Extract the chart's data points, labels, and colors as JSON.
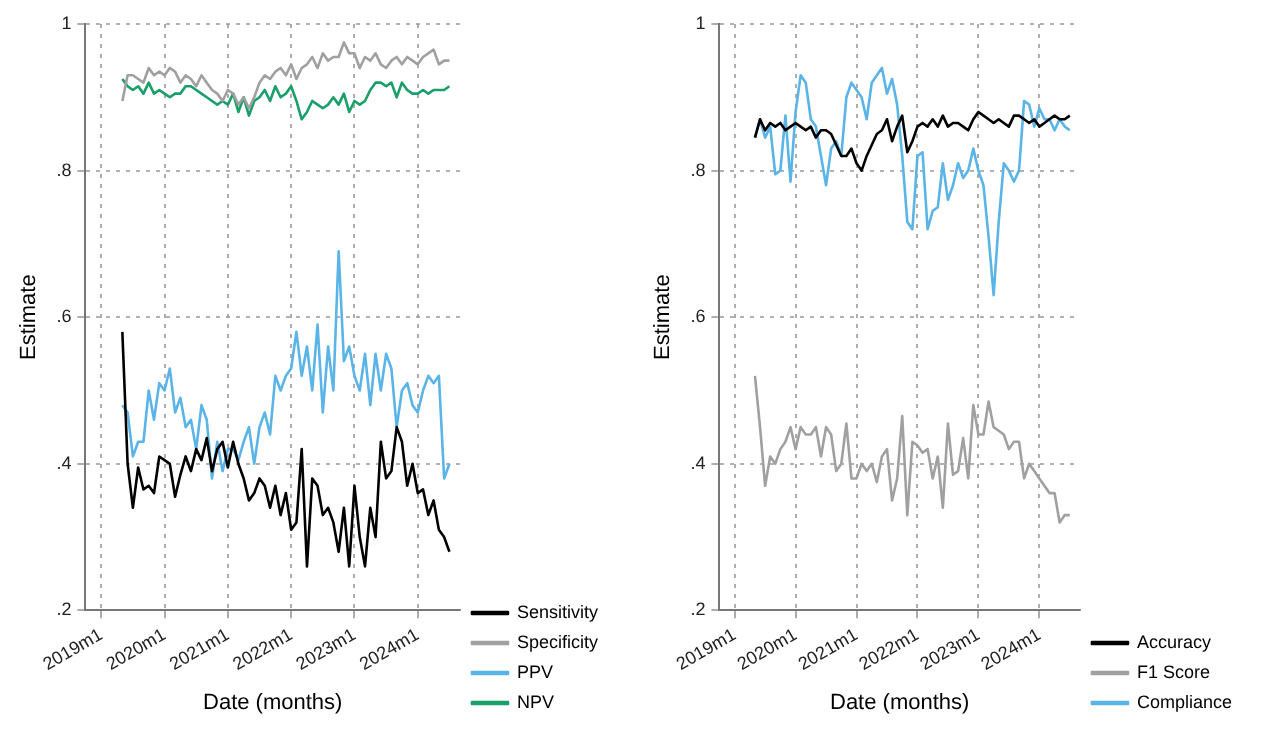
{
  "chart_data": [
    {
      "type": "line",
      "xlabel": "Date (months)",
      "ylabel": "Estimate",
      "grid": true,
      "legend": "right",
      "marker": "none",
      "x": [
        "2019-05",
        "2019-06",
        "2019-07",
        "2019-08",
        "2019-09",
        "2019-10",
        "2019-11",
        "2019-12",
        "2020-01",
        "2020-02",
        "2020-03",
        "2020-04",
        "2020-05",
        "2020-06",
        "2020-07",
        "2020-08",
        "2020-09",
        "2020-10",
        "2020-11",
        "2020-12",
        "2021-01",
        "2021-02",
        "2021-03",
        "2021-04",
        "2021-05",
        "2021-06",
        "2021-07",
        "2021-08",
        "2021-09",
        "2021-10",
        "2021-11",
        "2021-12",
        "2022-01",
        "2022-02",
        "2022-03",
        "2022-04",
        "2022-05",
        "2022-06",
        "2022-07",
        "2022-08",
        "2022-09",
        "2022-10",
        "2022-11",
        "2022-12",
        "2023-01",
        "2023-02",
        "2023-03",
        "2023-04",
        "2023-05",
        "2023-06",
        "2023-07",
        "2023-08",
        "2023-09",
        "2023-10",
        "2023-11",
        "2023-12",
        "2024-01",
        "2024-02",
        "2024-03",
        "2024-04",
        "2024-05",
        "2024-06",
        "2024-07"
      ],
      "xlim": [
        "2018-10",
        "2024-09"
      ],
      "xticks": [
        {
          "value": "2019-01",
          "label": "2019m1"
        },
        {
          "value": "2020-01",
          "label": "2020m1"
        },
        {
          "value": "2021-01",
          "label": "2021m1"
        },
        {
          "value": "2022-01",
          "label": "2022m1"
        },
        {
          "value": "2023-01",
          "label": "2023m1"
        },
        {
          "value": "2024-01",
          "label": "2024m1"
        }
      ],
      "ylim": [
        0.2,
        1
      ],
      "yticks": [
        {
          "value": 0.2,
          "label": ".2"
        },
        {
          "value": 0.4,
          "label": ".4"
        },
        {
          "value": 0.6,
          "label": ".6"
        },
        {
          "value": 0.8,
          "label": ".8"
        },
        1
      ],
      "series": [
        {
          "name": "Sensitivity",
          "color": "#000000",
          "values": [
            0.58,
            0.4,
            0.34,
            0.395,
            0.365,
            0.37,
            0.36,
            0.41,
            0.405,
            0.4,
            0.355,
            0.385,
            0.41,
            0.39,
            0.42,
            0.405,
            0.435,
            0.39,
            0.42,
            0.43,
            0.395,
            0.43,
            0.4,
            0.38,
            0.35,
            0.36,
            0.38,
            0.37,
            0.34,
            0.37,
            0.33,
            0.36,
            0.31,
            0.32,
            0.42,
            0.26,
            0.38,
            0.37,
            0.33,
            0.34,
            0.32,
            0.28,
            0.34,
            0.26,
            0.37,
            0.3,
            0.26,
            0.34,
            0.3,
            0.43,
            0.38,
            0.39,
            0.45,
            0.43,
            0.37,
            0.4,
            0.36,
            0.365,
            0.33,
            0.35,
            0.31,
            0.3,
            0.28
          ]
        },
        {
          "name": "Specificity",
          "color": "#a0a0a0",
          "values": [
            0.895,
            0.93,
            0.93,
            0.925,
            0.92,
            0.94,
            0.93,
            0.935,
            0.93,
            0.94,
            0.935,
            0.92,
            0.93,
            0.925,
            0.915,
            0.93,
            0.92,
            0.91,
            0.905,
            0.895,
            0.91,
            0.905,
            0.89,
            0.9,
            0.885,
            0.9,
            0.92,
            0.93,
            0.925,
            0.935,
            0.94,
            0.93,
            0.945,
            0.925,
            0.94,
            0.945,
            0.955,
            0.94,
            0.96,
            0.95,
            0.955,
            0.955,
            0.975,
            0.96,
            0.96,
            0.94,
            0.955,
            0.95,
            0.96,
            0.945,
            0.94,
            0.95,
            0.955,
            0.945,
            0.955,
            0.95,
            0.945,
            0.955,
            0.96,
            0.965,
            0.945,
            0.95,
            0.95
          ]
        },
        {
          "name": "PPV",
          "color": "#5ab4e8",
          "values": [
            0.48,
            0.47,
            0.41,
            0.43,
            0.43,
            0.5,
            0.46,
            0.51,
            0.5,
            0.53,
            0.47,
            0.49,
            0.45,
            0.46,
            0.42,
            0.48,
            0.46,
            0.38,
            0.43,
            0.39,
            0.42,
            0.42,
            0.405,
            0.43,
            0.45,
            0.4,
            0.45,
            0.47,
            0.44,
            0.52,
            0.5,
            0.52,
            0.53,
            0.58,
            0.52,
            0.56,
            0.5,
            0.59,
            0.47,
            0.56,
            0.5,
            0.69,
            0.54,
            0.56,
            0.52,
            0.5,
            0.55,
            0.48,
            0.55,
            0.5,
            0.55,
            0.53,
            0.45,
            0.5,
            0.51,
            0.48,
            0.47,
            0.5,
            0.52,
            0.51,
            0.52,
            0.38,
            0.4
          ]
        },
        {
          "name": "NPV",
          "color": "#1a9e6a",
          "values": [
            0.925,
            0.915,
            0.91,
            0.915,
            0.905,
            0.92,
            0.905,
            0.91,
            0.905,
            0.9,
            0.905,
            0.905,
            0.915,
            0.915,
            0.91,
            0.905,
            0.9,
            0.895,
            0.89,
            0.895,
            0.89,
            0.905,
            0.88,
            0.9,
            0.875,
            0.895,
            0.9,
            0.91,
            0.895,
            0.915,
            0.9,
            0.905,
            0.915,
            0.895,
            0.87,
            0.88,
            0.895,
            0.89,
            0.885,
            0.89,
            0.9,
            0.89,
            0.905,
            0.88,
            0.895,
            0.89,
            0.895,
            0.91,
            0.92,
            0.92,
            0.915,
            0.92,
            0.9,
            0.92,
            0.91,
            0.905,
            0.905,
            0.91,
            0.905,
            0.91,
            0.91,
            0.91,
            0.915
          ]
        }
      ]
    },
    {
      "type": "line",
      "xlabel": "Date (months)",
      "ylabel": "Estimate",
      "grid": true,
      "legend": "right",
      "marker": "none",
      "x": [
        "2019-05",
        "2019-06",
        "2019-07",
        "2019-08",
        "2019-09",
        "2019-10",
        "2019-11",
        "2019-12",
        "2020-01",
        "2020-02",
        "2020-03",
        "2020-04",
        "2020-05",
        "2020-06",
        "2020-07",
        "2020-08",
        "2020-09",
        "2020-10",
        "2020-11",
        "2020-12",
        "2021-01",
        "2021-02",
        "2021-03",
        "2021-04",
        "2021-05",
        "2021-06",
        "2021-07",
        "2021-08",
        "2021-09",
        "2021-10",
        "2021-11",
        "2021-12",
        "2022-01",
        "2022-02",
        "2022-03",
        "2022-04",
        "2022-05",
        "2022-06",
        "2022-07",
        "2022-08",
        "2022-09",
        "2022-10",
        "2022-11",
        "2022-12",
        "2023-01",
        "2023-02",
        "2023-03",
        "2023-04",
        "2023-05",
        "2023-06",
        "2023-07",
        "2023-08",
        "2023-09",
        "2023-10",
        "2023-11",
        "2023-12",
        "2024-01",
        "2024-02",
        "2024-03",
        "2024-04",
        "2024-05",
        "2024-06",
        "2024-07"
      ],
      "xlim": [
        "2018-10",
        "2024-09"
      ],
      "xticks": [
        {
          "value": "2019-01",
          "label": "2019m1"
        },
        {
          "value": "2020-01",
          "label": "2020m1"
        },
        {
          "value": "2021-01",
          "label": "2021m1"
        },
        {
          "value": "2022-01",
          "label": "2022m1"
        },
        {
          "value": "2023-01",
          "label": "2023m1"
        },
        {
          "value": "2024-01",
          "label": "2024m1"
        }
      ],
      "ylim": [
        0.2,
        1
      ],
      "yticks": [
        {
          "value": 0.2,
          "label": ".2"
        },
        {
          "value": 0.4,
          "label": ".4"
        },
        {
          "value": 0.6,
          "label": ".6"
        },
        {
          "value": 0.8,
          "label": ".8"
        },
        1
      ],
      "series": [
        {
          "name": "Accuracy",
          "color": "#000000",
          "values": [
            0.845,
            0.87,
            0.855,
            0.865,
            0.86,
            0.865,
            0.855,
            0.86,
            0.865,
            0.86,
            0.855,
            0.86,
            0.845,
            0.855,
            0.855,
            0.85,
            0.835,
            0.82,
            0.82,
            0.83,
            0.81,
            0.8,
            0.82,
            0.835,
            0.85,
            0.855,
            0.87,
            0.84,
            0.86,
            0.875,
            0.825,
            0.84,
            0.86,
            0.865,
            0.86,
            0.87,
            0.86,
            0.875,
            0.86,
            0.865,
            0.865,
            0.86,
            0.855,
            0.87,
            0.88,
            0.875,
            0.87,
            0.865,
            0.87,
            0.865,
            0.86,
            0.875,
            0.875,
            0.87,
            0.865,
            0.87,
            0.86,
            0.865,
            0.87,
            0.875,
            0.87,
            0.87,
            0.875
          ]
        },
        {
          "name": "F1 Score",
          "color": "#a0a0a0",
          "values": [
            0.52,
            0.45,
            0.37,
            0.41,
            0.4,
            0.42,
            0.43,
            0.45,
            0.42,
            0.45,
            0.44,
            0.44,
            0.45,
            0.41,
            0.45,
            0.44,
            0.39,
            0.4,
            0.455,
            0.38,
            0.38,
            0.4,
            0.39,
            0.4,
            0.375,
            0.41,
            0.42,
            0.35,
            0.38,
            0.465,
            0.33,
            0.43,
            0.425,
            0.415,
            0.42,
            0.38,
            0.41,
            0.34,
            0.455,
            0.385,
            0.39,
            0.435,
            0.38,
            0.48,
            0.44,
            0.44,
            0.485,
            0.45,
            0.445,
            0.44,
            0.42,
            0.43,
            0.43,
            0.38,
            0.4,
            0.39,
            0.38,
            0.37,
            0.36,
            0.36,
            0.32,
            0.33,
            0.33
          ]
        },
        {
          "name": "Compliance",
          "color": "#5ab4e8",
          "values": [
            0.845,
            0.87,
            0.845,
            0.86,
            0.795,
            0.8,
            0.875,
            0.785,
            0.88,
            0.93,
            0.92,
            0.87,
            0.86,
            0.82,
            0.78,
            0.83,
            0.84,
            0.82,
            0.9,
            0.92,
            0.91,
            0.9,
            0.87,
            0.92,
            0.93,
            0.94,
            0.905,
            0.925,
            0.89,
            0.82,
            0.73,
            0.72,
            0.82,
            0.825,
            0.72,
            0.745,
            0.75,
            0.81,
            0.76,
            0.78,
            0.81,
            0.79,
            0.8,
            0.83,
            0.8,
            0.78,
            0.71,
            0.63,
            0.73,
            0.81,
            0.8,
            0.785,
            0.8,
            0.895,
            0.89,
            0.86,
            0.885,
            0.87,
            0.87,
            0.855,
            0.87,
            0.86,
            0.855
          ]
        }
      ]
    }
  ]
}
